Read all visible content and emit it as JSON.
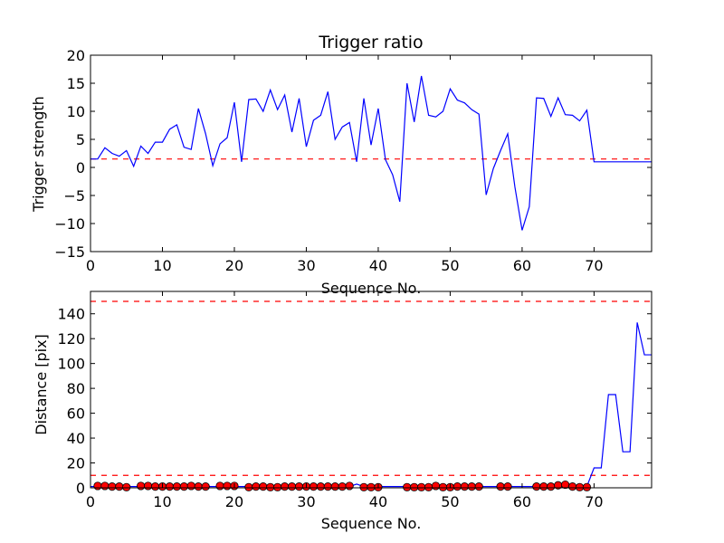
{
  "chart_data": [
    {
      "type": "line",
      "title": "Trigger ratio",
      "xlabel": "Sequence No.",
      "ylabel": "Trigger strength",
      "xlim": [
        0,
        78
      ],
      "ylim": [
        -15,
        20
      ],
      "xticks": [
        "0",
        "10",
        "20",
        "30",
        "40",
        "50",
        "60",
        "70"
      ],
      "yticks": [
        "20",
        "15",
        "10",
        "5",
        "0",
        "−5",
        "−10",
        "−15"
      ],
      "grid": false,
      "series": [
        {
          "color": "#0000ff",
          "x": [
            0,
            1,
            2,
            3,
            4,
            5,
            6,
            7,
            8,
            9,
            10,
            11,
            12,
            13,
            14,
            15,
            16,
            17,
            18,
            19,
            20,
            21,
            22,
            23,
            24,
            25,
            26,
            27,
            28,
            29,
            30,
            31,
            32,
            33,
            34,
            35,
            36,
            37,
            38,
            39,
            40,
            41,
            42,
            43,
            44,
            45,
            46,
            47,
            48,
            49,
            50,
            51,
            52,
            53,
            54,
            55,
            56,
            57,
            58,
            59,
            60,
            61,
            62,
            63,
            64,
            65,
            66,
            67,
            68,
            69,
            70,
            71,
            72,
            73,
            74,
            75,
            76,
            77,
            78
          ],
          "values": [
            1.5,
            1.5,
            3.5,
            2.5,
            2.0,
            3.0,
            0.2,
            3.8,
            2.5,
            4.5,
            4.5,
            6.8,
            7.6,
            3.6,
            3.2,
            10.5,
            6.0,
            0.3,
            4.2,
            5.3,
            11.6,
            1.0,
            12.1,
            12.2,
            10.0,
            13.8,
            10.3,
            12.9,
            6.3,
            12.3,
            3.7,
            8.4,
            9.3,
            13.5,
            5.0,
            7.2,
            8.0,
            1.0,
            12.3,
            4.0,
            10.5,
            1.4,
            -1.3,
            -6.1,
            15.0,
            8.1,
            16.3,
            9.3,
            9.0,
            10.0,
            14.0,
            12.0,
            11.5,
            10.3,
            9.5,
            -4.9,
            -0.2,
            3.0,
            6.0,
            -3.5,
            -11.2,
            -7.0,
            12.4,
            12.3,
            9.1,
            12.4,
            9.4,
            9.3,
            8.3,
            10.2,
            1.0,
            1.0,
            1.0,
            1.0,
            1.0,
            1.0,
            1.0,
            1.0,
            1.0
          ]
        }
      ],
      "hlines": [
        {
          "y": 1.5,
          "color": "#ff0000",
          "style": "dashed"
        }
      ]
    },
    {
      "type": "line",
      "title": "",
      "xlabel": "Sequence No.",
      "ylabel": "Distance [pix]",
      "xlim": [
        0,
        78
      ],
      "ylim": [
        0,
        158
      ],
      "xticks": [
        "0",
        "10",
        "20",
        "30",
        "40",
        "50",
        "60",
        "70"
      ],
      "yticks": [
        "0",
        "20",
        "40",
        "60",
        "80",
        "100",
        "120",
        "140"
      ],
      "grid": false,
      "series": [
        {
          "color": "#0000ff",
          "x": [
            0,
            1,
            2,
            3,
            4,
            5,
            6,
            7,
            8,
            9,
            10,
            11,
            12,
            13,
            14,
            15,
            16,
            17,
            18,
            19,
            20,
            21,
            22,
            23,
            24,
            25,
            26,
            27,
            28,
            29,
            30,
            31,
            32,
            33,
            34,
            35,
            36,
            37,
            38,
            39,
            40,
            41,
            42,
            43,
            44,
            45,
            46,
            47,
            48,
            49,
            50,
            51,
            52,
            53,
            54,
            55,
            56,
            57,
            58,
            59,
            60,
            61,
            62,
            63,
            64,
            65,
            66,
            67,
            68,
            69,
            70,
            71,
            72,
            73,
            74,
            75,
            76,
            77,
            78
          ],
          "values": [
            1,
            1,
            1,
            1,
            1,
            1,
            1,
            1,
            1,
            1,
            1,
            1,
            1,
            1,
            1,
            1,
            1,
            1,
            1,
            1,
            1,
            1,
            1,
            1,
            1,
            1,
            1,
            1,
            1,
            1,
            1,
            1,
            1,
            1,
            1,
            1,
            1,
            3,
            1,
            1,
            1,
            1,
            1,
            1,
            1,
            1,
            1,
            1,
            1,
            1,
            1,
            1,
            1,
            1,
            1,
            1,
            1,
            1,
            1,
            1,
            1,
            1,
            1,
            1,
            1,
            1,
            1,
            1,
            1,
            1,
            16,
            16,
            75,
            75,
            29,
            29,
            133,
            107,
            107
          ]
        }
      ],
      "markers": {
        "color": "#ff0000",
        "edge_color": "#000000",
        "x": [
          1,
          2,
          3,
          4,
          5,
          7,
          8,
          9,
          10,
          11,
          12,
          13,
          14,
          15,
          16,
          18,
          19,
          20,
          22,
          23,
          24,
          25,
          26,
          27,
          28,
          29,
          30,
          31,
          32,
          33,
          34,
          35,
          36,
          38,
          39,
          40,
          44,
          45,
          46,
          47,
          48,
          49,
          50,
          51,
          52,
          53,
          54,
          57,
          58,
          62,
          63,
          64,
          65,
          66,
          67,
          68,
          69
        ],
        "values": [
          1.5,
          1.5,
          1,
          1,
          0.5,
          1.5,
          1.5,
          1,
          1,
          1,
          1,
          1,
          1.5,
          1,
          1,
          1.5,
          1.5,
          1.5,
          0.5,
          1,
          1,
          0.5,
          0.5,
          1,
          1,
          1,
          1,
          1,
          1,
          1,
          1,
          1,
          1.5,
          0.5,
          0.5,
          0.5,
          0.5,
          0.5,
          0.5,
          0.5,
          1.5,
          0.5,
          0.5,
          1,
          1,
          1,
          1,
          1,
          1,
          1,
          1,
          1,
          2,
          2.5,
          1,
          0.5,
          0.5
        ]
      },
      "hlines": [
        {
          "y": 150,
          "color": "#ff0000",
          "style": "dashed"
        },
        {
          "y": 10,
          "color": "#ff0000",
          "style": "dashed"
        }
      ]
    }
  ]
}
